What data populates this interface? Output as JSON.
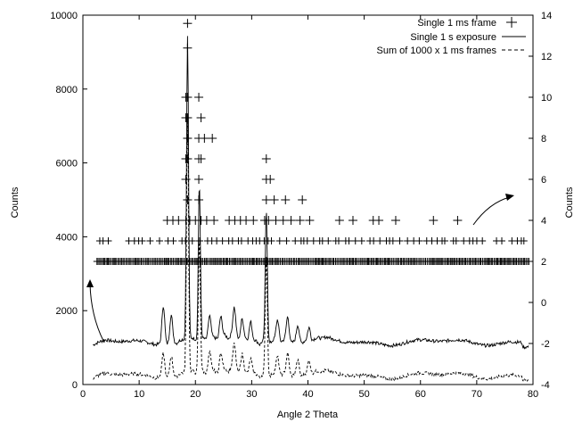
{
  "chart_data": {
    "type": "scatter",
    "xlabel": "Angle 2 Theta",
    "ylabel": "Counts",
    "y2label": "Counts",
    "xlim": [
      0,
      80
    ],
    "ylim": [
      0,
      10000
    ],
    "y2lim": [
      -4,
      14
    ],
    "grid": false,
    "legend_position": "top-right",
    "x_ticks": [
      "0",
      "10",
      "20",
      "30",
      "40",
      "50",
      "60",
      "70",
      "80"
    ],
    "y_ticks": [
      "0",
      "2000",
      "4000",
      "6000",
      "8000",
      "10000"
    ],
    "y2_ticks": [
      "-4",
      "-2",
      "0",
      "2",
      "4",
      "6",
      "8",
      "10",
      "12",
      "14"
    ],
    "series": [
      {
        "name": "Single 1 ms frame",
        "axis": "y2",
        "style": "points-plus",
        "points": [
          [
            18.6,
            13.6
          ],
          [
            18.6,
            12.4
          ],
          [
            18.3,
            10.0
          ],
          [
            18.6,
            10.0
          ],
          [
            20.6,
            10.0
          ],
          [
            18.3,
            9.0
          ],
          [
            18.6,
            9.0
          ],
          [
            21.0,
            9.0
          ],
          [
            18.6,
            8.0
          ],
          [
            20.6,
            8.0
          ],
          [
            21.6,
            8.0
          ],
          [
            23.0,
            8.0
          ],
          [
            18.3,
            7.0
          ],
          [
            18.6,
            7.0
          ],
          [
            20.6,
            7.0
          ],
          [
            21.0,
            7.0
          ],
          [
            32.6,
            7.0
          ],
          [
            18.3,
            6.0
          ],
          [
            20.6,
            6.0
          ],
          [
            32.6,
            6.0
          ],
          [
            33.3,
            6.0
          ],
          [
            18.6,
            5.0
          ],
          [
            20.6,
            5.0
          ],
          [
            32.6,
            5.0
          ],
          [
            34.0,
            5.0
          ],
          [
            36.0,
            5.0
          ],
          [
            39.0,
            5.0
          ],
          [
            15.0,
            4.0
          ],
          [
            16.0,
            4.0
          ],
          [
            17.0,
            4.0
          ],
          [
            18.3,
            4.0
          ],
          [
            19.0,
            4.0
          ],
          [
            20.0,
            4.0
          ],
          [
            21.0,
            4.0
          ],
          [
            22.0,
            4.0
          ],
          [
            23.3,
            4.0
          ],
          [
            26.0,
            4.0
          ],
          [
            27.0,
            4.0
          ],
          [
            28.0,
            4.0
          ],
          [
            29.0,
            4.0
          ],
          [
            30.3,
            4.0
          ],
          [
            32.3,
            4.0
          ],
          [
            33.0,
            4.0
          ],
          [
            34.3,
            4.0
          ],
          [
            35.6,
            4.0
          ],
          [
            37.0,
            4.0
          ],
          [
            38.6,
            4.0
          ],
          [
            40.3,
            4.0
          ],
          [
            45.6,
            4.0
          ],
          [
            48.0,
            4.0
          ],
          [
            51.6,
            4.0
          ],
          [
            52.6,
            4.0
          ],
          [
            55.6,
            4.0
          ],
          [
            62.3,
            4.0
          ],
          [
            66.6,
            4.0
          ]
        ],
        "dense_rows": [
          {
            "y": 3.0,
            "x_range": [
              3,
              79
            ],
            "gaps": [
              [
                5,
                7.5
              ],
              [
                12,
                13
              ],
              [
                71,
                73
              ],
              [
                74.5,
                75.5
              ]
            ]
          },
          {
            "y": 2.0,
            "x_range": [
              2.5,
              79.5
            ],
            "gaps": []
          }
        ]
      },
      {
        "name": "Single 1 s exposure",
        "axis": "y",
        "style": "solid",
        "approx_baseline": 1150,
        "peaks": [
          {
            "x": 14.3,
            "y": 2200
          },
          {
            "x": 15.7,
            "y": 1900
          },
          {
            "x": 18.6,
            "y": 9400
          },
          {
            "x": 20.7,
            "y": 5400
          },
          {
            "x": 22.5,
            "y": 1800
          },
          {
            "x": 24.5,
            "y": 1700
          },
          {
            "x": 26.9,
            "y": 1900
          },
          {
            "x": 28.3,
            "y": 1650
          },
          {
            "x": 29.8,
            "y": 1700
          },
          {
            "x": 32.6,
            "y": 4700
          },
          {
            "x": 34.6,
            "y": 1700
          },
          {
            "x": 36.4,
            "y": 1800
          },
          {
            "x": 38.2,
            "y": 1600
          },
          {
            "x": 40.2,
            "y": 1500
          }
        ]
      },
      {
        "name": "Sum of 1000 x 1 ms frames",
        "axis": "y",
        "style": "dashed",
        "approx_baseline": 250,
        "peaks": [
          {
            "x": 14.3,
            "y": 900
          },
          {
            "x": 15.7,
            "y": 800
          },
          {
            "x": 18.6,
            "y": 7300
          },
          {
            "x": 20.7,
            "y": 3900
          },
          {
            "x": 22.5,
            "y": 800
          },
          {
            "x": 24.5,
            "y": 700
          },
          {
            "x": 26.9,
            "y": 900
          },
          {
            "x": 28.3,
            "y": 700
          },
          {
            "x": 29.8,
            "y": 700
          },
          {
            "x": 32.6,
            "y": 3500
          },
          {
            "x": 34.6,
            "y": 700
          },
          {
            "x": 36.4,
            "y": 800
          },
          {
            "x": 38.2,
            "y": 650
          },
          {
            "x": 40.2,
            "y": 600
          }
        ]
      }
    ],
    "annotations": [
      {
        "type": "arrow",
        "meaning": "points to left axis (Counts)"
      },
      {
        "type": "arrow",
        "meaning": "points to right axis (Counts)"
      }
    ]
  }
}
